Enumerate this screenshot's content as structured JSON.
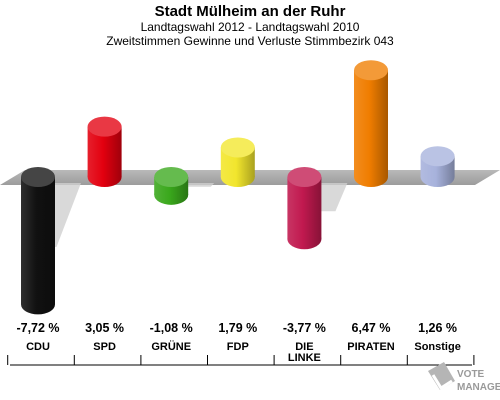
{
  "header": {
    "title": "Stadt Mülheim an der Ruhr",
    "subtitle1": "Landtagswahl 2012 - Landtagswahl 2010",
    "subtitle2": "Zweitstimmen Gewinne und Verluste Stimmbezirk 043"
  },
  "logo": {
    "line1": "VOTE",
    "line2": "MANAGER"
  },
  "chart_data": {
    "type": "bar",
    "title": "Stadt Mülheim an der Ruhr",
    "subtitle": "Zweitstimmen Gewinne und Verluste Stimmbezirk 043",
    "categories": [
      "CDU",
      "SPD",
      "GRÜNE",
      "FDP",
      "DIE LINKE",
      "PIRATEN",
      "Sonstige"
    ],
    "category_lines": [
      [
        "CDU"
      ],
      [
        "SPD"
      ],
      [
        "GRÜNE"
      ],
      [
        "FDP"
      ],
      [
        "DIE",
        "LINKE"
      ],
      [
        "PIRATEN"
      ],
      [
        "Sonstige"
      ]
    ],
    "values": [
      -7.72,
      3.05,
      -1.08,
      1.79,
      -3.77,
      6.47,
      1.26
    ],
    "value_labels": [
      "-7,72 %",
      "3,05 %",
      "-1,08 %",
      "1,79 %",
      "-3,77 %",
      "6,47 %",
      "1,26 %"
    ],
    "colors": [
      "#111111",
      "#e3000f",
      "#3aa81c",
      "#f2e62d",
      "#c1194f",
      "#f07d00",
      "#a7b2dc"
    ],
    "unit": "%",
    "grid": false
  }
}
